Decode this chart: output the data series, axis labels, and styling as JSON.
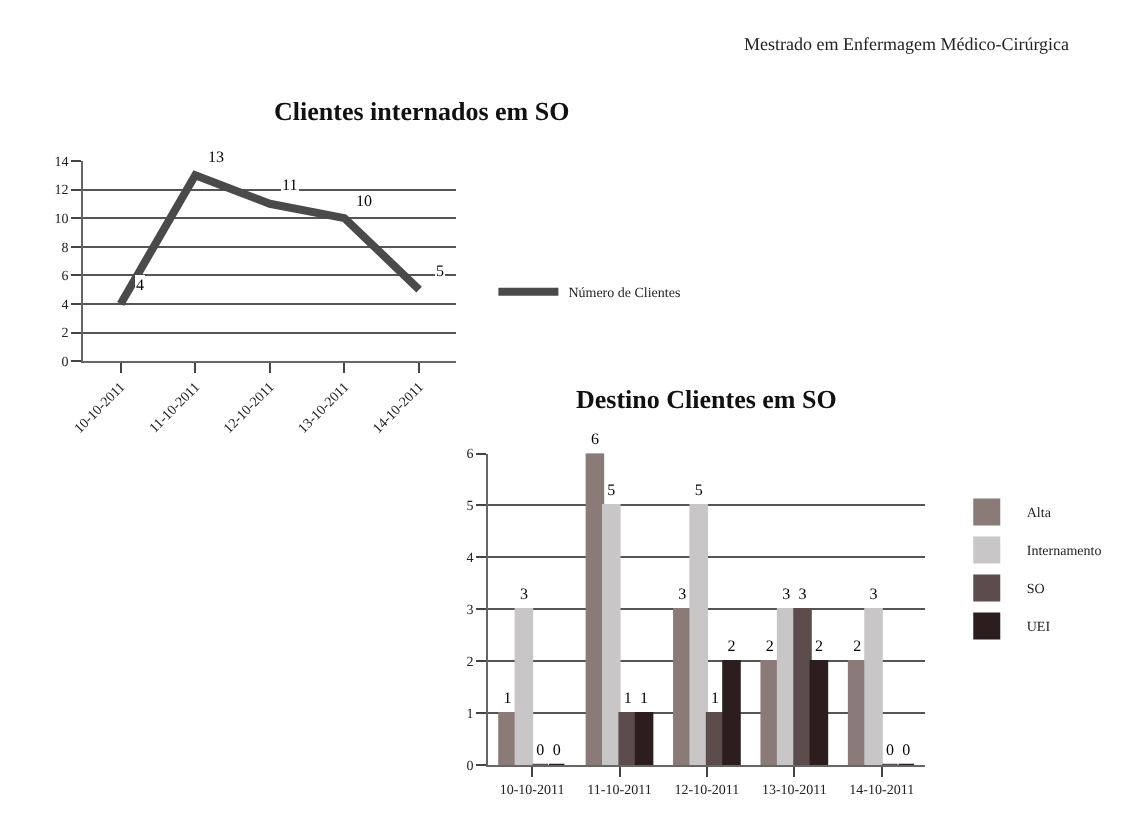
{
  "chart_data": [
    {
      "type": "line",
      "title": "Clientes internados em SO",
      "categories": [
        "10-10-2011",
        "11-10-2011",
        "12-10-2011",
        "13-10-2011",
        "14-10-2011"
      ],
      "series": [
        {
          "name": "Número de Clientes",
          "color": "#4a4a4a",
          "values": [
            4,
            13,
            11,
            10,
            5
          ]
        }
      ],
      "ylim": [
        0,
        14
      ],
      "yticks": [
        0,
        2,
        4,
        6,
        8,
        10,
        12,
        14
      ],
      "grid": "y",
      "legend": "right",
      "data_labels": true,
      "marker": "none",
      "line_style": "solid",
      "annotations": [
        "Mestrado em Enfermagem Médico-Cirúrgica"
      ]
    },
    {
      "type": "bar",
      "title": "Destino Clientes em SO",
      "categories": [
        "10-10-2011",
        "11-10-2011",
        "12-10-2011",
        "13-10-2011",
        "14-10-2011"
      ],
      "series": [
        {
          "name": "Alta",
          "color": "#8a7a78",
          "values": [
            1,
            6,
            3,
            2,
            2
          ]
        },
        {
          "name": "Internamento",
          "color": "#c8c6c6",
          "values": [
            3,
            5,
            5,
            3,
            3
          ]
        },
        {
          "name": "SO",
          "color": "#5c4c4c",
          "values": [
            0,
            1,
            1,
            3,
            0
          ]
        },
        {
          "name": "UEI",
          "color": "#2c1e1e",
          "values": [
            0,
            1,
            2,
            2,
            0
          ]
        }
      ],
      "ylim": [
        0,
        6
      ],
      "yticks": [
        0,
        1,
        2,
        3,
        4,
        5,
        6
      ],
      "grid": "y",
      "legend": "right",
      "data_labels": true
    }
  ]
}
